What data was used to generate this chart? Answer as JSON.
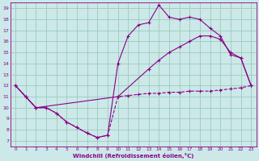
{
  "background_color": "#cce8e8",
  "grid_color": "#99ccbb",
  "line_color": "#880088",
  "xlabel": "Windchill (Refroidissement éolien,°C)",
  "xlim": [
    -0.5,
    23.5
  ],
  "ylim": [
    6.5,
    19.5
  ],
  "xticks": [
    0,
    1,
    2,
    3,
    4,
    5,
    6,
    7,
    8,
    9,
    10,
    11,
    12,
    13,
    14,
    15,
    16,
    17,
    18,
    19,
    20,
    21,
    22,
    23
  ],
  "yticks": [
    7,
    8,
    9,
    10,
    11,
    12,
    13,
    14,
    15,
    16,
    17,
    18,
    19
  ],
  "line1_x": [
    0,
    1,
    2,
    3,
    4,
    5,
    6,
    7,
    8,
    9,
    10,
    11,
    12,
    13,
    14,
    15,
    16,
    17,
    18,
    19,
    20,
    21,
    22,
    23
  ],
  "line1_y": [
    12,
    11,
    10,
    10,
    9.5,
    8.7,
    8.2,
    7.7,
    7.3,
    7.5,
    11.0,
    11.1,
    11.2,
    11.3,
    11.3,
    11.4,
    11.4,
    11.5,
    11.5,
    11.5,
    11.6,
    11.7,
    11.8,
    12.0
  ],
  "line1_style": "--",
  "line2_x": [
    0,
    1,
    2,
    3,
    4,
    5,
    6,
    7,
    8,
    9,
    10,
    11,
    12,
    13,
    14,
    15,
    16,
    17,
    18,
    19,
    20,
    21,
    22,
    23
  ],
  "line2_y": [
    12,
    11,
    10,
    10,
    9.5,
    8.7,
    8.2,
    7.7,
    7.3,
    7.5,
    14.0,
    16.5,
    17.5,
    17.7,
    19.3,
    18.2,
    18.0,
    18.2,
    18.0,
    17.2,
    16.5,
    14.8,
    14.5,
    12.0
  ],
  "line2_style": "-",
  "line3_x": [
    0,
    1,
    2,
    10,
    13,
    14,
    15,
    16,
    17,
    18,
    19,
    20,
    21,
    22,
    23
  ],
  "line3_y": [
    12,
    11,
    10,
    11.0,
    13.5,
    14.3,
    15.0,
    15.5,
    16.0,
    16.5,
    16.5,
    16.2,
    15.0,
    14.5,
    12.0
  ],
  "line3_style": "-"
}
